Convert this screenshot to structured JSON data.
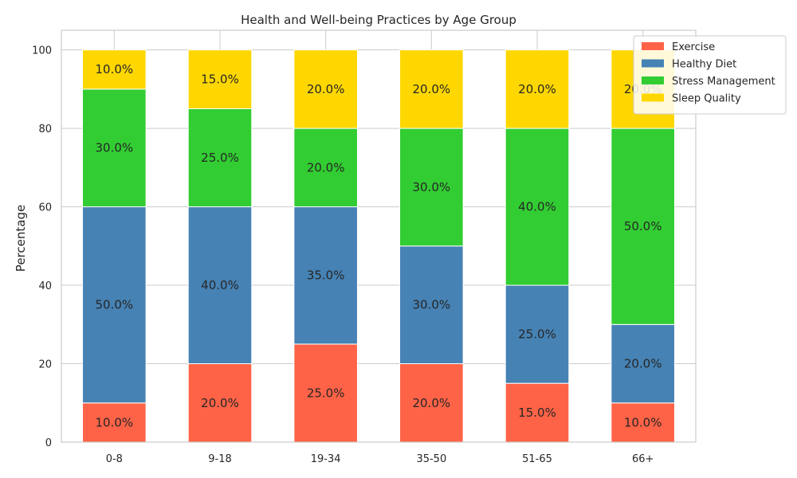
{
  "chart_data": {
    "type": "bar",
    "stacked": true,
    "title": "Health and Well-being Practices by Age Group",
    "xlabel": "",
    "ylabel": "Percentage",
    "ylim": [
      0,
      105
    ],
    "yticks": [
      0,
      20,
      40,
      60,
      80,
      100
    ],
    "grid": true,
    "legend_position": "top-right",
    "categories": [
      "0-8",
      "9-18",
      "19-34",
      "35-50",
      "51-65",
      "66+"
    ],
    "series": [
      {
        "name": "Exercise",
        "color": "#ff6347",
        "values": [
          10,
          20,
          25,
          20,
          15,
          10
        ],
        "labels": [
          "10.0%",
          "20.0%",
          "25.0%",
          "20.0%",
          "15.0%",
          "10.0%"
        ]
      },
      {
        "name": "Healthy Diet",
        "color": "#4682b4",
        "values": [
          50,
          40,
          35,
          30,
          25,
          20
        ],
        "labels": [
          "50.0%",
          "40.0%",
          "35.0%",
          "30.0%",
          "25.0%",
          "20.0%"
        ]
      },
      {
        "name": "Stress Management",
        "color": "#32cd32",
        "values": [
          30,
          25,
          20,
          30,
          40,
          50
        ],
        "labels": [
          "30.0%",
          "25.0%",
          "20.0%",
          "30.0%",
          "40.0%",
          "50.0%"
        ]
      },
      {
        "name": "Sleep Quality",
        "color": "#ffd700",
        "values": [
          10,
          15,
          20,
          20,
          20,
          20
        ],
        "labels": [
          "10.0%",
          "15.0%",
          "20.0%",
          "20.0%",
          "20.0%",
          "20.0%"
        ]
      }
    ]
  }
}
